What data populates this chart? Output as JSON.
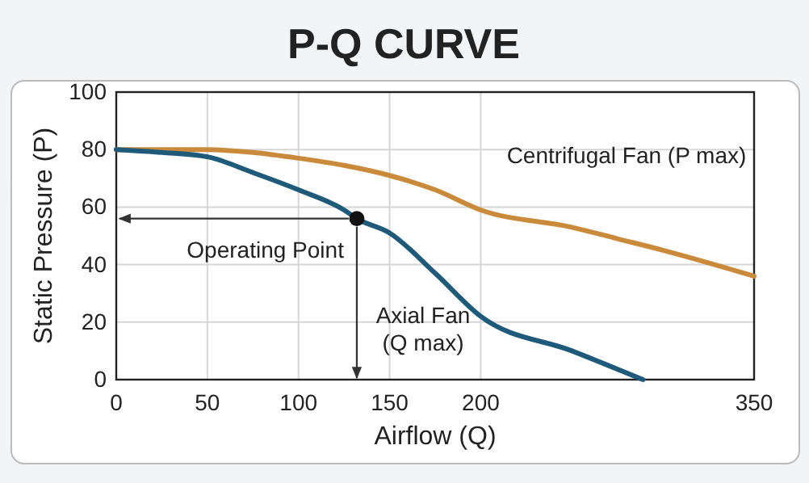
{
  "chart_data": {
    "type": "line",
    "title": "P-Q CURVE",
    "xlabel": "Airflow (Q)",
    "ylabel": "Static Pressure (P)",
    "xlim": [
      0,
      350
    ],
    "xticks": [
      0,
      50,
      100,
      150,
      200,
      350
    ],
    "ylim": [
      0,
      100
    ],
    "yticks": [
      0,
      20,
      40,
      60,
      80,
      100
    ],
    "grid": true,
    "marker": "none",
    "line_style": "solid",
    "series": [
      {
        "name": "Centrifugal Fan (P max)",
        "color": "#c98a3c",
        "x": [
          0,
          25,
          50,
          75,
          100,
          125,
          150,
          175,
          200,
          250,
          275,
          300,
          350
        ],
        "values": [
          80,
          80,
          80,
          79,
          77,
          74.5,
          71,
          66,
          59,
          53,
          49,
          45,
          36
        ]
      },
      {
        "name": "Axial Fan (Q max)",
        "color": "#1f5a7a",
        "x": [
          0,
          25,
          50,
          75,
          100,
          125,
          132,
          150,
          175,
          200,
          250,
          289
        ],
        "values": [
          80,
          79,
          77.5,
          72,
          66,
          59,
          56,
          51,
          37,
          22,
          10,
          0
        ]
      },
      {
        "type": "scatter",
        "color": "#111111",
        "marker": "circle",
        "x": [
          132
        ],
        "values": [
          56
        ]
      }
    ],
    "annotations": [
      {
        "text": "Operating Point",
        "x": 132,
        "y": 56
      }
    ]
  }
}
